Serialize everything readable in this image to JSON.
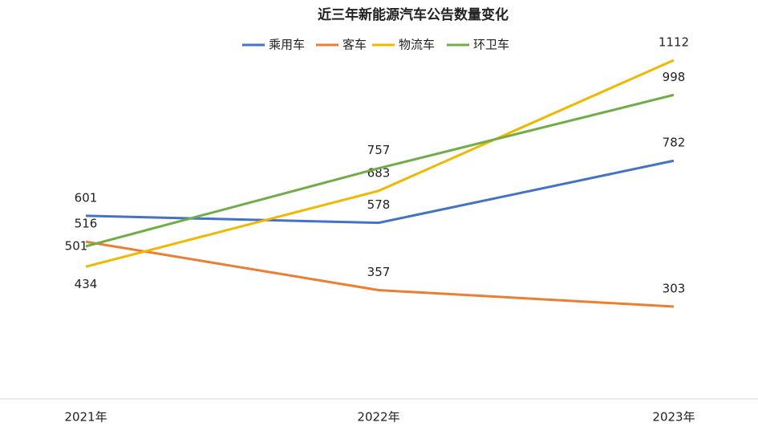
{
  "chart_data": {
    "type": "line",
    "title": "近三年新能源汽车公告数量变化",
    "categories": [
      "2021年",
      "2022年",
      "2023年"
    ],
    "series": [
      {
        "name": "乘用车",
        "color": "#4472c4",
        "values": [
          601,
          578,
          782
        ]
      },
      {
        "name": "客车",
        "color": "#ed7d31",
        "values": [
          516,
          357,
          303
        ]
      },
      {
        "name": "物流车",
        "color": "#f0b800",
        "values": [
          434,
          683,
          1112
        ]
      },
      {
        "name": "环卫车",
        "color": "#70ad47",
        "values": [
          501,
          757,
          998
        ]
      }
    ],
    "ylim": [
      0,
      1200
    ],
    "legend": "top"
  }
}
